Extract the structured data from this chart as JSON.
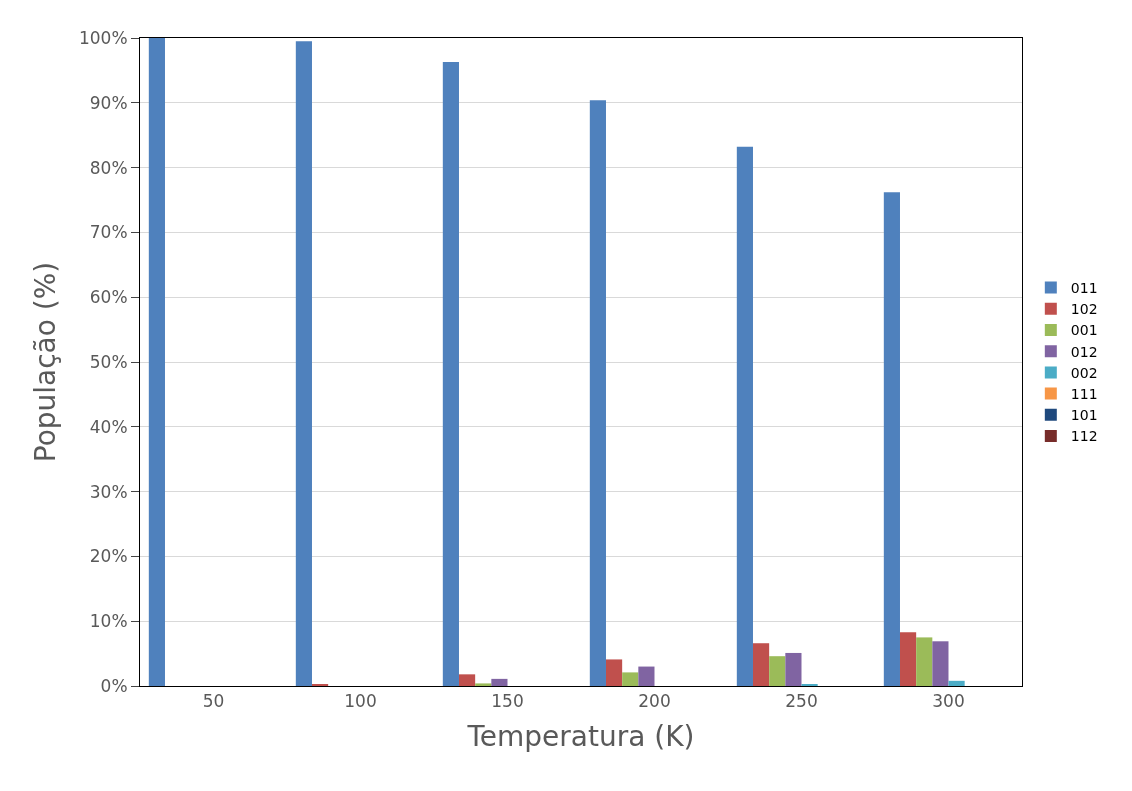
{
  "chart_data": {
    "type": "bar",
    "xlabel": "Temperatura (K)",
    "ylabel": "População (%)",
    "categories": [
      "50",
      "100",
      "150",
      "200",
      "250",
      "300"
    ],
    "series": [
      {
        "name": "011",
        "color": "#4f81bd",
        "values": [
          100,
          99.5,
          96.3,
          90.4,
          83.2,
          76.2
        ]
      },
      {
        "name": "102",
        "color": "#c0504d",
        "values": [
          0,
          0.2,
          1.8,
          4.1,
          6.6,
          8.3
        ]
      },
      {
        "name": "001",
        "color": "#9bbb59",
        "values": [
          0,
          0,
          0.4,
          2.1,
          4.6,
          7.5
        ]
      },
      {
        "name": "012",
        "color": "#8064a2",
        "values": [
          0,
          0,
          1.1,
          3.0,
          5.1,
          6.9
        ]
      },
      {
        "name": "002",
        "color": "#4bacc6",
        "values": [
          0,
          0,
          0,
          0,
          0.3,
          0.8
        ]
      },
      {
        "name": "111",
        "color": "#f79646",
        "values": [
          0,
          0,
          0,
          0,
          0,
          0
        ]
      },
      {
        "name": "101",
        "color": "#1f497d",
        "values": [
          0,
          0,
          0,
          0,
          0,
          0
        ]
      },
      {
        "name": "112",
        "color": "#772c2a",
        "values": [
          0,
          0,
          0,
          0,
          0,
          0
        ]
      }
    ],
    "ylim": [
      0,
      100
    ],
    "yticks": [
      {
        "value": 0,
        "label": "0%"
      },
      {
        "value": 10,
        "label": "10%"
      },
      {
        "value": 20,
        "label": "20%"
      },
      {
        "value": 30,
        "label": "30%"
      },
      {
        "value": 40,
        "label": "40%"
      },
      {
        "value": 50,
        "label": "50%"
      },
      {
        "value": 60,
        "label": "60%"
      },
      {
        "value": 70,
        "label": "70%"
      },
      {
        "value": 80,
        "label": "80%"
      },
      {
        "value": 90,
        "label": "90%"
      },
      {
        "value": 100,
        "label": "100%"
      }
    ],
    "grid": "y",
    "legend": "right"
  }
}
